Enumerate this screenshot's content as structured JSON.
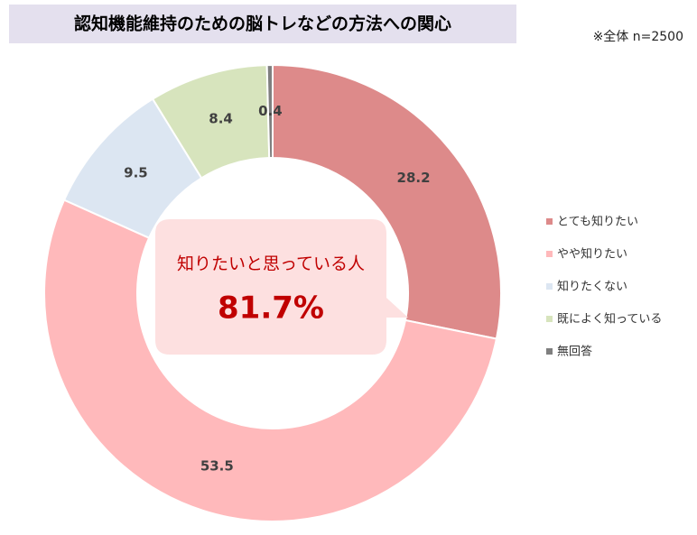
{
  "chart_data": {
    "type": "donut",
    "title": "認知機能維持のための脳トレなどの方法への関心",
    "note": "※全体 n=2500",
    "categories": [
      "とても知りたい",
      "やや知りたい",
      "知りたくない",
      "既によく知っている",
      "無回答"
    ],
    "values": [
      28.2,
      53.5,
      9.5,
      8.4,
      0.4
    ],
    "colors": [
      "#dd8a8a",
      "#ffb9bb",
      "#dce6f2",
      "#d7e4bd",
      "#7f7f7f"
    ],
    "legend": "right",
    "annotation": {
      "text": "知りたいと思っている人",
      "value_text": "81.7%"
    }
  }
}
